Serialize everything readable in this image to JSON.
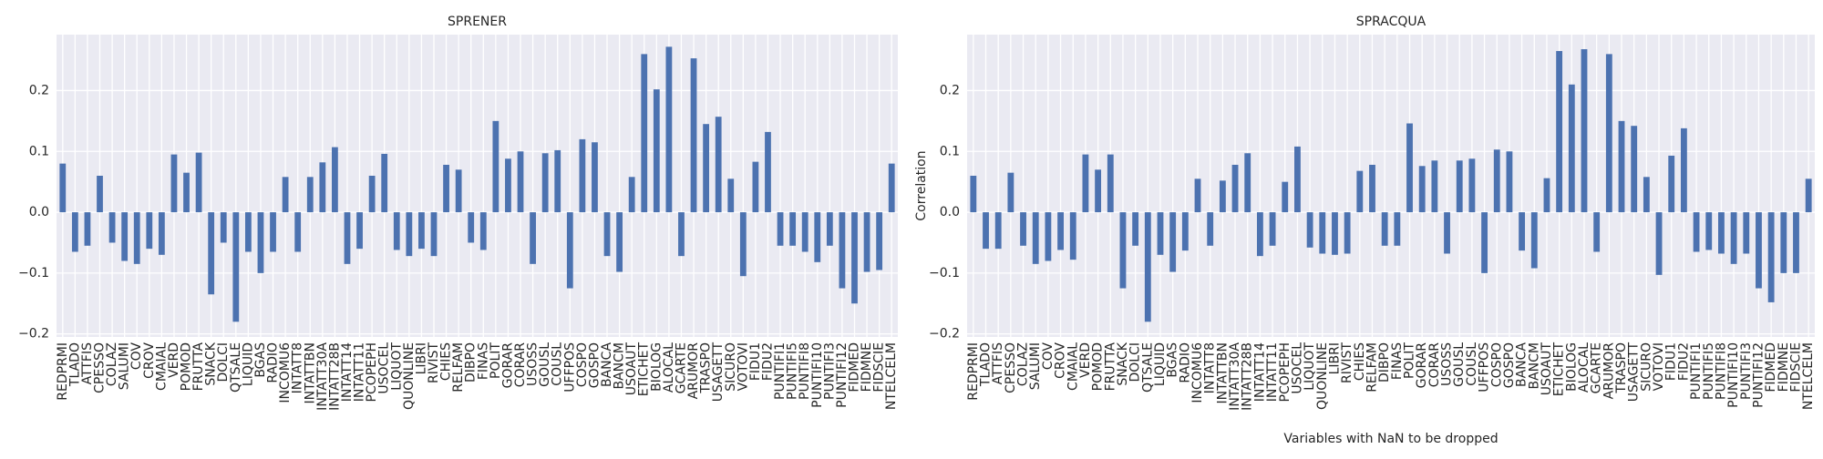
{
  "chart_data": [
    {
      "type": "bar",
      "title": "SPRENER",
      "color": "#4c72b0",
      "grid": true,
      "categories": [
        "REDPRMI",
        "TLADO",
        "ATTFIS",
        "CPESSO",
        "COLAZ",
        "SALUMI",
        "COV",
        "CROV",
        "CMAIAL",
        "VERD",
        "POMOD",
        "FRUTTA",
        "SNACK",
        "DOLCI",
        "QTSALE",
        "LIQUID",
        "BGAS",
        "RADIO",
        "INCOMU6",
        "INTATT8",
        "INTATTBN",
        "INTATT30A",
        "INTATT28B",
        "INTATT14",
        "INTATT11",
        "PCOPEPH",
        "USOCEL",
        "LIQUOT",
        "QUONLINE",
        "LIBRI",
        "RIVIST",
        "CHIES",
        "RELFAM",
        "DIBPO",
        "FINAS",
        "POLIT",
        "GORAR",
        "CORAR",
        "USOSS",
        "GOUSL",
        "COUSL",
        "UFFPOS",
        "COSPO",
        "GOSPO",
        "BANCA",
        "BANCM",
        "USOAUT",
        "ETICHET",
        "BIOLOG",
        "ALOCAL",
        "GCARTE",
        "ARUMOR",
        "TRASPO",
        "USAGETT",
        "SICURO",
        "VOTOVI",
        "FIDU1",
        "FIDU2",
        "PUNTIFI1",
        "PUNTIFI5",
        "PUNTIFI8",
        "PUNTIFI10",
        "PUNTIFI3",
        "PUNTIFI12",
        "FIDMED",
        "FIDMNE",
        "FIDSCIE",
        "NTELCELM"
      ],
      "values": [
        0.08,
        -0.065,
        -0.055,
        0.06,
        -0.05,
        -0.08,
        -0.085,
        -0.06,
        -0.07,
        0.095,
        0.065,
        0.098,
        -0.135,
        -0.05,
        -0.18,
        -0.065,
        -0.1,
        -0.065,
        0.058,
        -0.065,
        0.058,
        0.082,
        0.107,
        -0.085,
        -0.06,
        0.06,
        0.096,
        -0.062,
        -0.072,
        -0.06,
        -0.072,
        0.078,
        0.07,
        -0.05,
        -0.062,
        0.15,
        0.088,
        0.1,
        -0.085,
        0.097,
        0.102,
        -0.125,
        0.12,
        0.115,
        -0.072,
        -0.098,
        0.058,
        0.26,
        0.202,
        0.272,
        -0.072,
        0.253,
        0.145,
        0.157,
        0.055,
        -0.105,
        0.083,
        0.132,
        -0.055,
        -0.055,
        -0.065,
        -0.082,
        -0.055,
        -0.125,
        -0.15,
        -0.098,
        -0.095,
        0.08
      ],
      "ylim": [
        -0.205,
        0.292
      ],
      "yticks": [
        {
          "value": -0.2,
          "label": "−0.2"
        },
        {
          "value": -0.1,
          "label": "−0.1"
        },
        {
          "value": 0,
          "label": "0.0"
        },
        0.1,
        0.2
      ]
    },
    {
      "type": "bar",
      "title": "SPRACQUA",
      "color": "#4c72b0",
      "grid": true,
      "y_label": "Correlation",
      "x_label": "Variables with NaN to be dropped",
      "categories": [
        "REDPRMI",
        "TLADO",
        "ATTFIS",
        "CPESSO",
        "COLAZ",
        "SALUMI",
        "COV",
        "CROV",
        "CMAIAL",
        "VERD",
        "POMOD",
        "FRUTTA",
        "SNACK",
        "DOLCI",
        "QTSALE",
        "LIQUID",
        "BGAS",
        "RADIO",
        "INCOMU6",
        "INTATT8",
        "INTATTBN",
        "INTATT30A",
        "INTATT28B",
        "INTATT14",
        "INTATT11",
        "PCOPEPH",
        "USOCEL",
        "LIQUOT",
        "QUONLINE",
        "LIBRI",
        "RIVIST",
        "CHIES",
        "RELFAM",
        "DIBPO",
        "FINAS",
        "POLIT",
        "GORAR",
        "CORAR",
        "USOSS",
        "GOUSL",
        "COUSL",
        "UFFPOS",
        "COSPO",
        "GOSPO",
        "BANCA",
        "BANCM",
        "USOAUT",
        "ETICHET",
        "BIOLOG",
        "ALOCAL",
        "GCARTE",
        "ARUMOR",
        "TRASPO",
        "USAGETT",
        "SICURO",
        "VOTOVI",
        "FIDU1",
        "FIDU2",
        "PUNTIFI1",
        "PUNTIFI5",
        "PUNTIFI8",
        "PUNTIFI10",
        "PUNTIFI3",
        "PUNTIFI12",
        "FIDMED",
        "FIDMNE",
        "FIDSCIE",
        "NTELCELM"
      ],
      "values": [
        0.06,
        -0.06,
        -0.06,
        0.065,
        -0.055,
        -0.085,
        -0.08,
        -0.062,
        -0.078,
        0.095,
        0.07,
        0.095,
        -0.125,
        -0.055,
        -0.18,
        -0.07,
        -0.098,
        -0.063,
        0.055,
        -0.055,
        0.052,
        0.078,
        0.097,
        -0.072,
        -0.055,
        0.05,
        0.108,
        -0.058,
        -0.068,
        -0.07,
        -0.068,
        0.068,
        0.078,
        -0.055,
        -0.055,
        0.146,
        0.076,
        0.085,
        -0.068,
        0.085,
        0.088,
        -0.1,
        0.103,
        0.1,
        -0.063,
        -0.092,
        0.056,
        0.265,
        0.21,
        0.268,
        -0.065,
        0.26,
        0.15,
        0.142,
        0.058,
        -0.103,
        0.093,
        0.138,
        -0.065,
        -0.062,
        -0.068,
        -0.085,
        -0.068,
        -0.125,
        -0.148,
        -0.1,
        -0.1,
        0.055
      ],
      "ylim": [
        -0.205,
        0.292
      ],
      "yticks": [
        {
          "value": -0.2,
          "label": "−0.2"
        },
        {
          "value": -0.1,
          "label": "−0.1"
        },
        {
          "value": 0,
          "label": "0.0"
        },
        0.1,
        0.2
      ]
    }
  ]
}
